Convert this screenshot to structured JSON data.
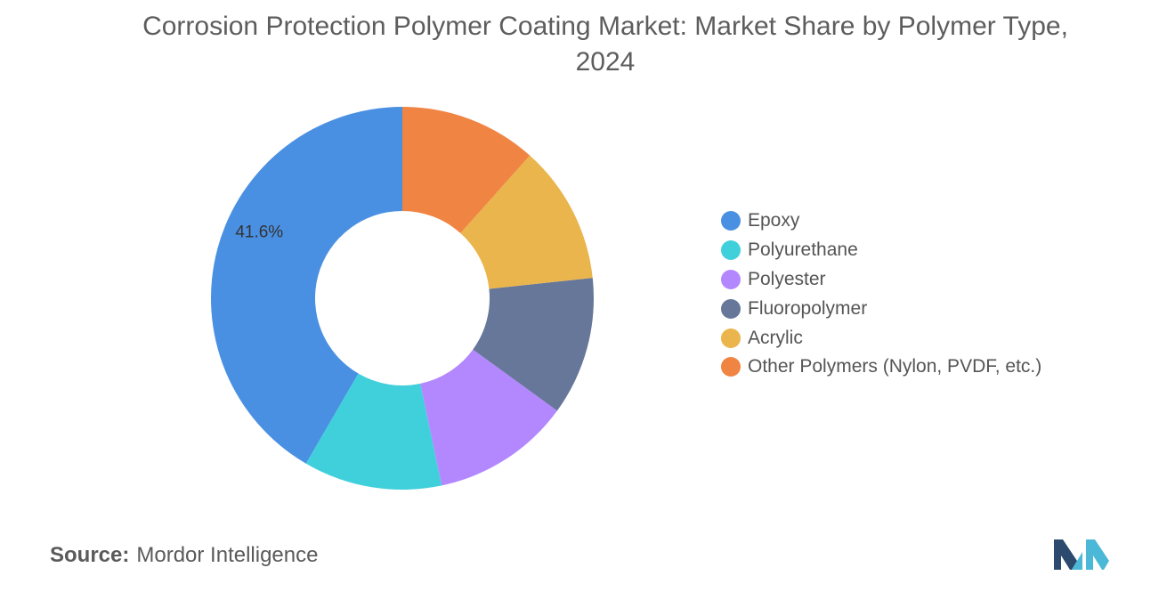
{
  "header": {
    "title_line1": "Corrosion Protection Polymer Coating Market: Market Share by Polymer Type,",
    "title_line2": "2024"
  },
  "chart_data": {
    "type": "pie",
    "variant": "donut",
    "title": "Corrosion Protection Polymer Coating Market: Market Share by Polymer Type, 2024",
    "categories": [
      "Epoxy",
      "Polyurethane",
      "Polyester",
      "Fluoropolymer",
      "Acrylic",
      "Other Polymers (Nylon, PVDF, etc.)"
    ],
    "values": [
      41.6,
      11.7,
      11.7,
      11.7,
      11.7,
      11.6
    ],
    "colors": [
      "#4a90e2",
      "#40d0dc",
      "#b388ff",
      "#667799",
      "#eab54c",
      "#f08443"
    ],
    "data_labels": [
      "41.6%",
      "",
      "",
      "",
      "",
      ""
    ],
    "legend_position": "right"
  },
  "legend": {
    "items": [
      {
        "label": "Epoxy",
        "color": "#4a90e2"
      },
      {
        "label": "Polyurethane",
        "color": "#40d0dc"
      },
      {
        "label": "Polyester",
        "color": "#b388ff"
      },
      {
        "label": "Fluoropolymer",
        "color": "#667799"
      },
      {
        "label": "Acrylic",
        "color": "#eab54c"
      },
      {
        "label": "Other Polymers (Nylon, PVDF, etc.)",
        "color": "#f08443"
      }
    ]
  },
  "footer": {
    "source_key": "Source:",
    "source_value": "Mordor Intelligence"
  },
  "logo": {
    "icon": "mordor-intelligence-logo-icon",
    "colors": [
      "#2c4a6e",
      "#4bb8d8"
    ]
  }
}
